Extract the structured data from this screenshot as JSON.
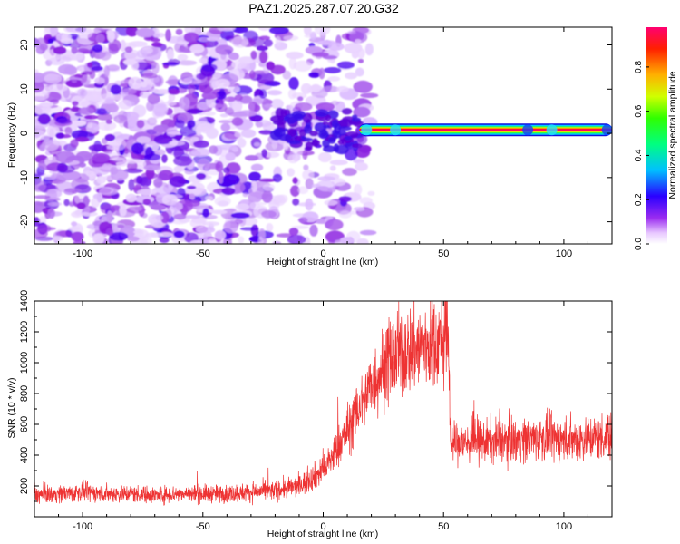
{
  "title": "PAZ1.2025.287.07.20.G32",
  "chart_data": [
    {
      "type": "heatmap",
      "xlabel": "Height of straight line (km)",
      "ylabel": "Frequency (Hz)",
      "xlim": [
        -120,
        120
      ],
      "ylim": [
        -25,
        24
      ],
      "xticks": [
        -100,
        -50,
        0,
        50,
        100
      ],
      "yticks": [
        -20,
        -10,
        0,
        10,
        20
      ],
      "noise_region_x": [
        -120,
        17
      ],
      "signal_band": {
        "x": [
          15,
          120
        ],
        "frequency_hz": 0.8,
        "normalized_amplitude": 0.85
      },
      "colorbar": {
        "label": "Normalized spectral amplitude",
        "range": [
          0.0,
          0.98
        ],
        "ticks": [
          "0.0",
          "0.2",
          "0.4",
          "0.6",
          "0.8"
        ]
      }
    },
    {
      "type": "line",
      "xlabel": "Height of straight line (km)",
      "ylabel": "SNR (10 * v/v)",
      "xlim": [
        -120,
        120
      ],
      "ylim": [
        0,
        1400
      ],
      "xticks": [
        -100,
        -50,
        0,
        50,
        100
      ],
      "yticks": [
        200,
        400,
        600,
        800,
        1000,
        1200,
        1400
      ],
      "series": [
        {
          "name": "SNR",
          "color": "#ee3333",
          "x": [
            -120,
            -110,
            -100,
            -90,
            -80,
            -70,
            -60,
            -50,
            -40,
            -30,
            -20,
            -10,
            0,
            5,
            10,
            15,
            20,
            25,
            30,
            35,
            40,
            45,
            50,
            52,
            53,
            60,
            70,
            80,
            90,
            100,
            110,
            120
          ],
          "y": [
            140,
            150,
            160,
            150,
            150,
            140,
            150,
            150,
            150,
            160,
            170,
            200,
            300,
            420,
            560,
            720,
            860,
            970,
            1040,
            1080,
            1100,
            1130,
            1140,
            1180,
            470,
            480,
            490,
            500,
            510,
            500,
            510,
            520
          ]
        }
      ]
    }
  ]
}
